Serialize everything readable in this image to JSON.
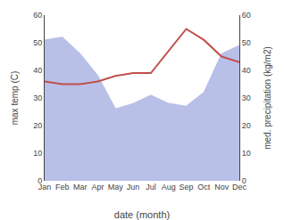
{
  "chart_data": {
    "type": "line",
    "categories": [
      "Jan",
      "Feb",
      "Mar",
      "Apr",
      "May",
      "Jun",
      "Jul",
      "Aug",
      "Sep",
      "Oct",
      "Nov",
      "Dec"
    ],
    "xlabel": "date (month)",
    "ylabel": "max temp (C)",
    "y2label": "med. precipitation (kg/m2)",
    "ylim": [
      0,
      60
    ],
    "yticks": [
      0,
      10,
      20,
      30,
      40,
      50,
      60
    ],
    "y2lim": [
      0,
      60
    ],
    "y2ticks": [
      0,
      10,
      20,
      30,
      40,
      50,
      60
    ],
    "grid": false,
    "series": [
      {
        "type": "line",
        "color": "#c0504d",
        "values": [
          36,
          35,
          35,
          36,
          38,
          39,
          39,
          47,
          55,
          51,
          45,
          43
        ]
      },
      {
        "type": "area",
        "color": "#b8c0e8",
        "axis": "y2",
        "values": [
          51,
          52,
          46,
          38,
          26,
          28,
          31,
          28,
          27,
          32,
          46,
          49
        ]
      }
    ]
  }
}
